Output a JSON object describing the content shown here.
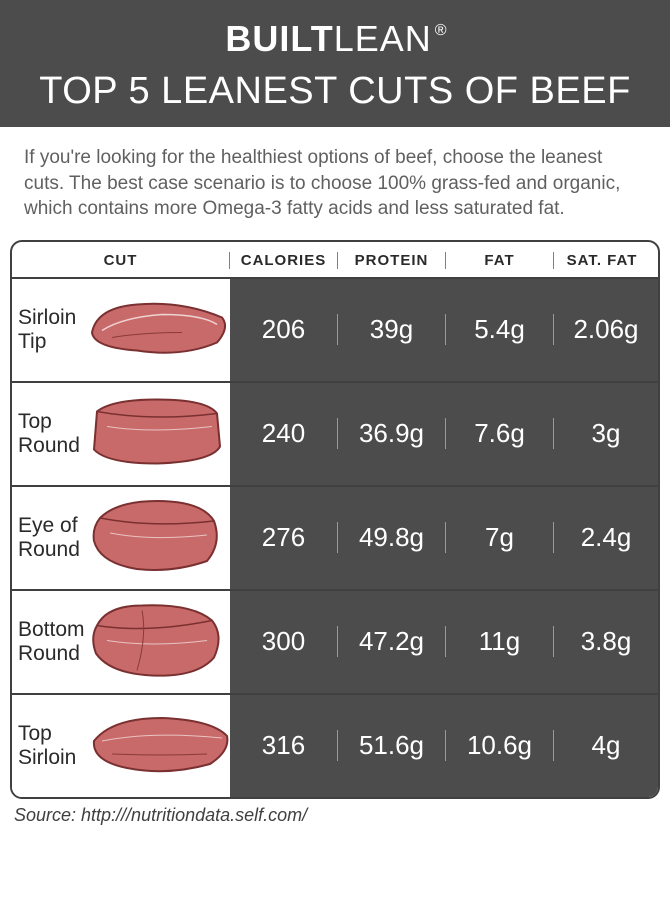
{
  "brand": {
    "bold": "BUILT",
    "light": "LEAN",
    "reg": "®"
  },
  "title": "TOP 5 LEANEST CUTS OF BEEF",
  "intro": "If you're looking for the healthiest options of beef, choose the leanest cuts. The best case scenario is to choose 100% grass-fed and organic, which contains more Omega-3 fatty acids and less saturated fat.",
  "columns": {
    "cut": "CUT",
    "calories": "CALORIES",
    "protein": "PROTEIN",
    "fat": "FAT",
    "satfat": "SAT. FAT"
  },
  "rows": [
    {
      "cut": "Sirloin Tip",
      "calories": "206",
      "protein": "39g",
      "fat": "5.4g",
      "satfat": "2.06g"
    },
    {
      "cut": "Top Round",
      "calories": "240",
      "protein": "36.9g",
      "fat": "7.6g",
      "satfat": "3g"
    },
    {
      "cut": "Eye of Round",
      "calories": "276",
      "protein": "49.8g",
      "fat": "7g",
      "satfat": "2.4g"
    },
    {
      "cut": "Bottom Round",
      "calories": "300",
      "protein": "47.2g",
      "fat": "11g",
      "satfat": "3.8g"
    },
    {
      "cut": "Top Sirloin",
      "calories": "316",
      "protein": "51.6g",
      "fat": "10.6g",
      "satfat": "4g"
    }
  ],
  "source": "Source: http:///nutritiondata.self.com/",
  "style": {
    "header_bg": "#4c4c4c",
    "row_data_bg": "#4c4c4c",
    "meat_color": "#b85a5a",
    "text_color": "#ffffff",
    "border_color": "#404040"
  }
}
